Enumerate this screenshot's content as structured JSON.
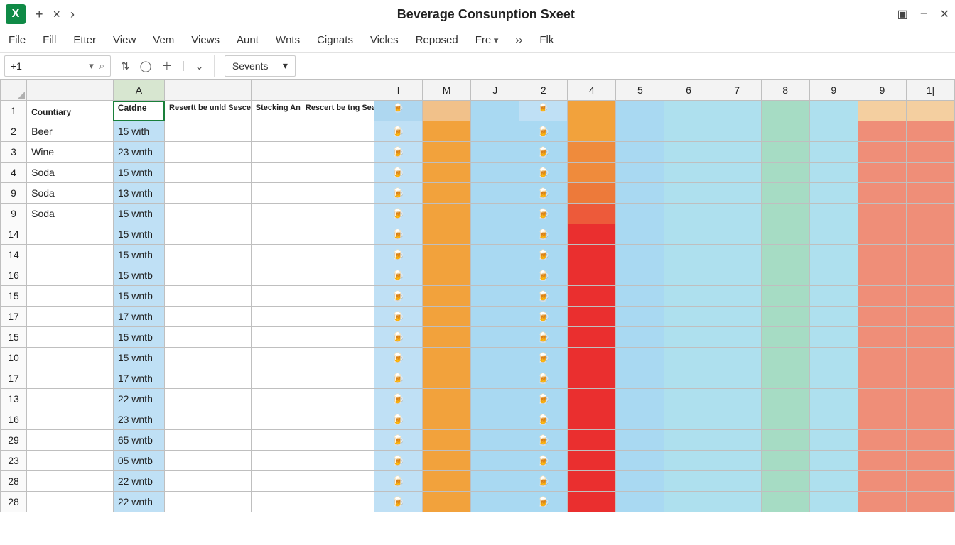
{
  "app": {
    "badge": "X",
    "title": "Beverage Consunption Sxeet"
  },
  "tab_buttons": {
    "plus": "+",
    "close": "×",
    "next": "›"
  },
  "win_buttons": {
    "square": "▣",
    "min": "–",
    "x": "✕"
  },
  "menu": [
    "File",
    "Fill",
    "Etter",
    "View",
    "Vem",
    "Views",
    "Aunt",
    "Wnts",
    "Cignats",
    "Vicles",
    "Reposed",
    "Fre",
    "››",
    "Flk"
  ],
  "fre_has_chevron": true,
  "namebox": {
    "value": "+1"
  },
  "fxbar": {
    "drop": "Sevents"
  },
  "col_letters": [
    "",
    "A",
    "",
    "",
    "",
    "I",
    "M",
    "J",
    "2",
    "4",
    "5",
    "6",
    "7",
    "8",
    "9",
    "9",
    "1|"
  ],
  "selected_col_index": 1,
  "header_row": {
    "b": "Countiary",
    "a": "Catdne",
    "c": "Resertt be unld Sescect To Clines",
    "d": "Stecking Analtars",
    "e": "Rescert be tng Seacs To Clines"
  },
  "row_nums": [
    "1",
    "2",
    "3",
    "4",
    "9",
    "9",
    "14",
    "14",
    "16",
    "15",
    "17",
    "15",
    "10",
    "17",
    "13",
    "16",
    "29",
    "23",
    "28",
    "28"
  ],
  "countiary": [
    "",
    "Beer",
    "Wine",
    "Soda",
    "Soda",
    "Soda",
    "",
    "",
    "",
    "",
    "",
    "",
    "",
    "",
    "",
    "",
    "",
    "",
    "",
    ""
  ],
  "catdne": [
    "",
    "15 with",
    "23 wnth",
    "15 wnth",
    "13 wnth",
    "15 wnth",
    "15 wnth",
    "15 wnth",
    "15 wntb",
    "15 wntb",
    "17 wnth",
    "15 wntb",
    "15 wnth",
    "17 wnth",
    "22 wnth",
    "23 wnth",
    "65 wntb",
    "05 wntb",
    "22 wntb",
    "22 wnth"
  ],
  "beer_glyph": "🍺",
  "colors": {
    "col_I_light": "#bfe0f5",
    "col_I_hdr": "#aed7f0",
    "col_M_orange": "#f2a23c",
    "col_M_hdr": "#f1c18a",
    "col_J_blue": "#a9d9f2",
    "col_2_blue": "#a9d9f2",
    "col_2_light": "#bfe0f5",
    "col_4_top1": "#f2a23c",
    "col_4_top2": "#ef8b3c",
    "col_4_top3": "#ef8b3c",
    "col_4_top4": "#ed7a3a",
    "col_4_top5": "#ed5a3a",
    "col_4_red": "#ea2f2f",
    "col_5_blue": "#a9d9f2",
    "col_6_blue": "#aee0ee",
    "col_7_blue": "#aee0ee",
    "col_8_green": "#a6dcc4",
    "col_9a_blue": "#aee0ee",
    "col_9b_top": "#f4cfa0",
    "col_9b_red": "#ef8e78",
    "col_11_top": "#f4cfa0",
    "col_11_red": "#ef8e78",
    "catdne_bg": "#bfe0f5"
  },
  "col4_shades": [
    "#f2a23c",
    "#f2a23c",
    "#ef8b3c",
    "#ef8b3c",
    "#ed7a3a",
    "#ed5a3a",
    "#ea2f2f",
    "#ea2f2f",
    "#ea2f2f",
    "#ea2f2f",
    "#ea2f2f",
    "#ea2f2f",
    "#ea2f2f",
    "#ea2f2f",
    "#ea2f2f",
    "#ea2f2f",
    "#ea2f2f",
    "#ea2f2f",
    "#ea2f2f",
    "#ea2f2f"
  ],
  "col9b_shades": [
    "#f4cfa0",
    "#ef8e78",
    "#ef8e78",
    "#ef8e78",
    "#ef8e78",
    "#ef8e78",
    "#ef8e78",
    "#ef8e78",
    "#ef8e78",
    "#ef8e78",
    "#ef8e78",
    "#ef8e78",
    "#ef8e78",
    "#ef8e78",
    "#ef8e78",
    "#ef8e78",
    "#ef8e78",
    "#ef8e78",
    "#ef8e78",
    "#ef8e78"
  ],
  "col11_shades": [
    "#f4cfa0",
    "#ef8e78",
    "#ef8e78",
    "#ef8e78",
    "#ef8e78",
    "#ef8e78",
    "#ef8e78",
    "#ef8e78",
    "#ef8e78",
    "#ef8e78",
    "#ef8e78",
    "#ef8e78",
    "#ef8e78",
    "#ef8e78",
    "#ef8e78",
    "#ef8e78",
    "#ef8e78",
    "#ef8e78",
    "#ef8e78",
    "#ef8e78"
  ],
  "colM_shades": [
    "#f1c18a",
    "#f2a23c",
    "#f2a23c",
    "#f2a23c",
    "#f2a23c",
    "#f2a23c",
    "#f2a23c",
    "#f2a23c",
    "#f2a23c",
    "#f2a23c",
    "#f2a23c",
    "#f2a23c",
    "#f2a23c",
    "#f2a23c",
    "#f2a23c",
    "#f2a23c",
    "#f2a23c",
    "#f2a23c",
    "#f2a23c",
    "#f2a23c"
  ]
}
